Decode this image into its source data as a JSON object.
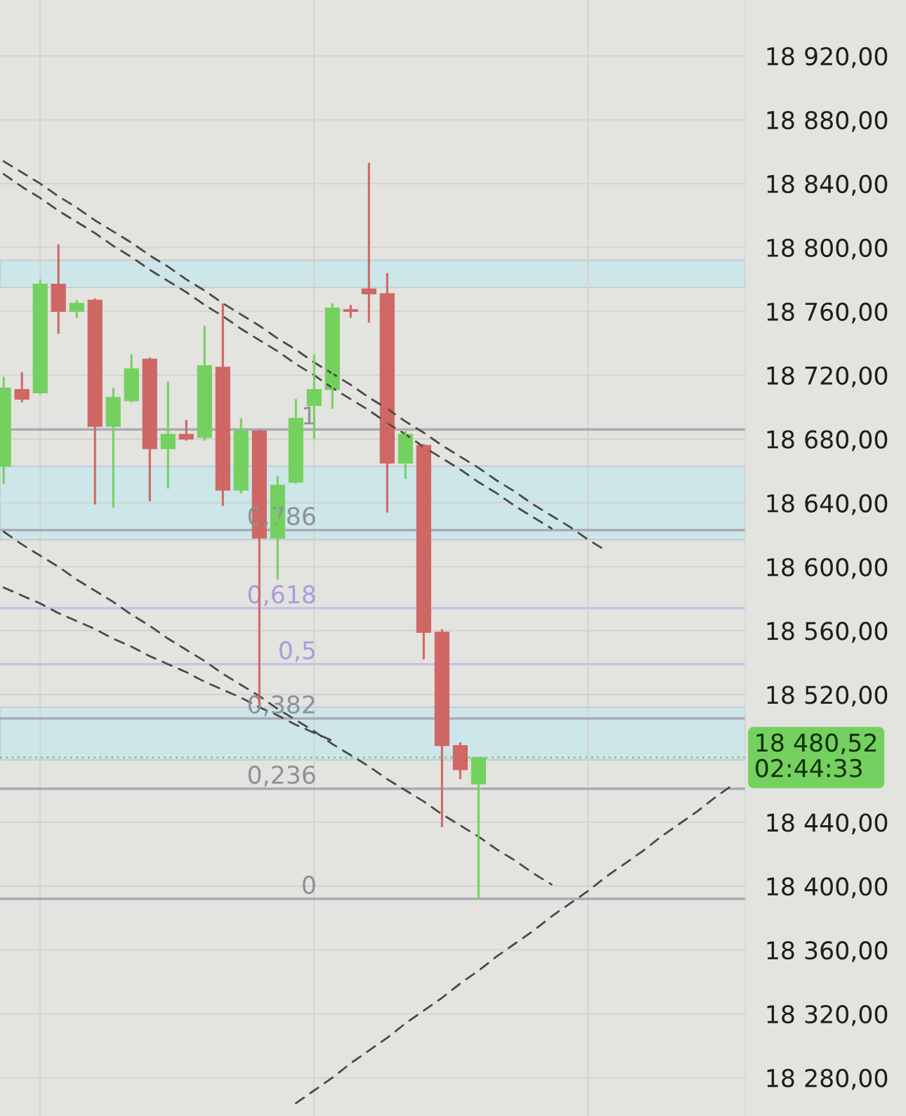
{
  "chart_data": {
    "type": "candlestick",
    "categories": [
      null,
      null,
      null,
      null,
      null,
      null,
      null,
      null,
      null,
      null,
      null,
      null,
      null,
      null,
      null,
      null,
      null,
      null,
      null,
      null,
      null,
      null,
      null,
      null,
      null,
      null,
      null,
      null,
      null,
      null,
      null,
      null,
      null,
      null,
      null,
      null,
      null,
      null,
      null,
      null,
      null
    ],
    "ohlc": [
      [
        18663,
        18719,
        18652,
        18712
      ],
      [
        18711,
        18722,
        18703,
        18705
      ],
      [
        18709,
        18780,
        18708,
        18777
      ],
      [
        18777,
        18802,
        18746,
        18760
      ],
      [
        18760,
        18767,
        18756,
        18765
      ],
      [
        18767,
        18768,
        18639,
        18688
      ],
      [
        18688,
        18712,
        18637,
        18706
      ],
      [
        18704,
        18733,
        18703,
        18724
      ],
      [
        18730,
        18731,
        18641,
        18674
      ],
      [
        18674,
        18716,
        18649,
        18683
      ],
      [
        18683,
        18692,
        18679,
        18680
      ],
      [
        18681,
        18751,
        18679,
        18726
      ],
      [
        18725,
        18765,
        18638,
        18648
      ],
      [
        18648,
        18693,
        18646,
        18685
      ],
      [
        18685,
        18686,
        18514,
        18618
      ],
      [
        18618,
        18657,
        18592,
        18651
      ],
      [
        18653,
        18705,
        18652,
        18693
      ],
      [
        18701,
        18733,
        18680,
        18711
      ],
      [
        18711,
        18765,
        18699,
        18762
      ],
      [
        18761,
        18764,
        18756,
        18760
      ],
      [
        18774,
        18853,
        18753,
        18771
      ],
      [
        18771,
        18784,
        18634,
        18665
      ],
      [
        18665,
        18685,
        18655,
        18683
      ],
      [
        18676,
        18677,
        18542,
        18559
      ],
      [
        18559,
        18561,
        18437,
        18488
      ],
      [
        18488,
        18490,
        18467,
        18473
      ],
      [
        18464,
        18480.52,
        18392,
        18480.52
      ],
      null,
      null,
      null,
      null,
      null,
      null,
      null,
      null,
      null,
      null,
      null,
      null,
      null,
      null
    ],
    "colors": [
      "#74d15f",
      "#cf6764",
      "#74d15f",
      "#cf6764",
      "#74d15f",
      "#cf6764",
      "#74d15f",
      "#74d15f",
      "#cf6764",
      "#74d15f",
      "#cf6764",
      "#74d15f",
      "#cf6764",
      "#74d15f",
      "#cf6764",
      "#74d15f",
      "#74d15f",
      "#74d15f",
      "#74d15f",
      "#cf6764",
      "#cf6764",
      "#cf6764",
      "#74d15f",
      "#cf6764",
      "#cf6764",
      "#cf6764",
      "#74d15f",
      null,
      null,
      null,
      null,
      null,
      null,
      null,
      null,
      null,
      null,
      null,
      null,
      null,
      null
    ],
    "series": [
      {
        "type": "line",
        "color": "#4a4a4a",
        "line_style": "dashed",
        "values": [
          18854,
          18847,
          18840,
          18832,
          18825,
          18817,
          18810,
          18803,
          18795,
          18788,
          18780,
          18773,
          18765,
          18758,
          18751,
          18743,
          18736,
          18728,
          18721,
          18714,
          18706,
          18699,
          18691,
          18684,
          18676,
          18669,
          18662,
          18654,
          18647,
          18639,
          18632,
          18625,
          18617,
          18610,
          null,
          null,
          null,
          null,
          null,
          null,
          null
        ]
      },
      {
        "type": "line",
        "color": "#4a4a4a",
        "line_style": "dashed",
        "values": [
          18846,
          18838,
          18831,
          18823,
          18816,
          18809,
          18801,
          18794,
          18786,
          18779,
          18772,
          18764,
          18757,
          18749,
          18742,
          18735,
          18727,
          18720,
          18712,
          18705,
          18698,
          18690,
          18683,
          18675,
          18668,
          18661,
          18653,
          18646,
          18638,
          18631,
          18624,
          null,
          null,
          null,
          null,
          null,
          null,
          null,
          null,
          null,
          null
        ]
      },
      {
        "type": "line",
        "color": "#4a4a4a",
        "line_style": "dashed",
        "values": [
          18622,
          18614,
          18607,
          18600,
          18592,
          18585,
          18578,
          18570,
          18563,
          18555,
          18548,
          18541,
          18533,
          18526,
          18519,
          18511,
          18504,
          18497,
          18489,
          18482,
          18475,
          18467,
          18460,
          18453,
          18445,
          18438,
          18431,
          18423,
          18416,
          18408,
          18401,
          null,
          null,
          null,
          null,
          null,
          null,
          null,
          null,
          null,
          null
        ]
      },
      {
        "type": "line",
        "color": "#4a4a4a",
        "line_style": "dashed",
        "values": [
          18587,
          18582,
          18577,
          18571,
          18566,
          18561,
          18555,
          18550,
          18544,
          18539,
          18534,
          18528,
          18523,
          18518,
          18512,
          18507,
          18501,
          18496,
          18491,
          null,
          null,
          null,
          null,
          null,
          null,
          null,
          null,
          null,
          null,
          null,
          null,
          null,
          null,
          null,
          null,
          null,
          null,
          null,
          null,
          null,
          null
        ]
      },
      {
        "type": "line",
        "color": "#4a4a4a",
        "line_style": "dashed",
        "values": [
          null,
          null,
          null,
          null,
          null,
          null,
          null,
          null,
          null,
          null,
          null,
          null,
          null,
          null,
          null,
          null,
          18264,
          18272,
          18280,
          18289,
          18297,
          18305,
          18314,
          18322,
          18330,
          18339,
          18347,
          18356,
          18364,
          18372,
          18381,
          18389,
          18397,
          18406,
          18414,
          18422,
          18431,
          18439,
          18447,
          18456,
          18464
        ]
      }
    ],
    "ylim": [
      18256,
      18955
    ],
    "yticks": [
      {
        "value": 18280,
        "label": "18 280,00"
      },
      {
        "value": 18320,
        "label": "18 320,00"
      },
      {
        "value": 18360,
        "label": "18 360,00"
      },
      {
        "value": 18400,
        "label": "18 400,00"
      },
      {
        "value": 18440,
        "label": "18 440,00"
      },
      {
        "value": 18520,
        "label": "18 520,00"
      },
      {
        "value": 18560,
        "label": "18 560,00"
      },
      {
        "value": 18600,
        "label": "18 600,00"
      },
      {
        "value": 18640,
        "label": "18 640,00"
      },
      {
        "value": 18680,
        "label": "18 680,00"
      },
      {
        "value": 18720,
        "label": "18 720,00"
      },
      {
        "value": 18760,
        "label": "18 760,00"
      },
      {
        "value": 18800,
        "label": "18 800,00"
      },
      {
        "value": 18840,
        "label": "18 840,00"
      },
      {
        "value": 18880,
        "label": "18 880,00"
      },
      {
        "value": 18920,
        "label": "18 920,00"
      }
    ],
    "bands": [
      {
        "axis": "y",
        "from": 18775,
        "to": 18792,
        "color": "#cde6ea"
      },
      {
        "axis": "y",
        "from": 18617,
        "to": 18663,
        "color": "#cde6ea"
      },
      {
        "axis": "y",
        "from": 18479,
        "to": 18512,
        "color": "#cde6ea"
      }
    ],
    "ref_lines": [
      {
        "axis": "y",
        "value": 18686,
        "color": "#a9abb3",
        "line_style": "solid"
      },
      {
        "axis": "y",
        "value": 18623,
        "color": "#a9abb3",
        "line_style": "solid"
      },
      {
        "axis": "y",
        "value": 18574,
        "color": "#c9c1e6",
        "line_style": "solid"
      },
      {
        "axis": "y",
        "value": 18539,
        "color": "#c9c1e6",
        "line_style": "solid"
      },
      {
        "axis": "y",
        "value": 18505,
        "color": "#a9abb3",
        "line_style": "solid"
      },
      {
        "axis": "y",
        "value": 18461,
        "color": "#a9abb3",
        "line_style": "solid"
      },
      {
        "axis": "y",
        "value": 18392,
        "color": "#a9abb3",
        "line_style": "solid"
      },
      {
        "axis": "y",
        "value": 18480.52,
        "label": "18 480,52\n02:44:33",
        "color": "#74d15f",
        "line_style": "dotted"
      }
    ],
    "annotations": [
      {
        "text": "1",
        "y": 18686
      },
      {
        "text": "0,786",
        "y": 18623
      },
      {
        "text": "0,618",
        "y": 18574
      },
      {
        "text": "0,5",
        "y": 18539
      },
      {
        "text": "0,382",
        "y": 18505
      },
      {
        "text": "0,236",
        "y": 18461
      },
      {
        "text": "0",
        "y": 18392
      }
    ],
    "grid": true,
    "tick_labels": "y"
  }
}
